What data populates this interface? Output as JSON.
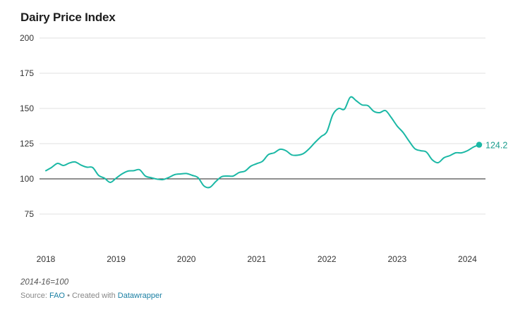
{
  "chart_data": {
    "type": "line",
    "title": "Dairy Price Index",
    "notes": "2014-16=100",
    "source": {
      "prefix": "Source:",
      "name": "FAO",
      "separator": "• Created with",
      "tool": "Datawrapper"
    },
    "ylim": [
      75,
      200
    ],
    "y_ticks": [
      75,
      100,
      125,
      150,
      175,
      200
    ],
    "baseline": 100,
    "xlim": [
      "2018-01",
      "2024-03"
    ],
    "x_ticks": [
      "2018",
      "2019",
      "2020",
      "2021",
      "2022",
      "2023",
      "2024"
    ],
    "grid": true,
    "colors": {
      "series": "#1bb8a5",
      "grid": "#e2e2e2",
      "baseline": "#222222"
    },
    "end_label": "124.2",
    "series": [
      {
        "x": [
          "2018-01",
          "2018-02",
          "2018-03",
          "2018-04",
          "2018-05",
          "2018-06",
          "2018-07",
          "2018-08",
          "2018-09",
          "2018-10",
          "2018-11",
          "2018-12",
          "2019-01",
          "2019-02",
          "2019-03",
          "2019-04",
          "2019-05",
          "2019-06",
          "2019-07",
          "2019-08",
          "2019-09",
          "2019-10",
          "2019-11",
          "2019-12",
          "2020-01",
          "2020-02",
          "2020-03",
          "2020-04",
          "2020-05",
          "2020-06",
          "2020-07",
          "2020-08",
          "2020-09",
          "2020-10",
          "2020-11",
          "2020-12",
          "2021-01",
          "2021-02",
          "2021-03",
          "2021-04",
          "2021-05",
          "2021-06",
          "2021-07",
          "2021-08",
          "2021-09",
          "2021-10",
          "2021-11",
          "2021-12",
          "2022-01",
          "2022-02",
          "2022-03",
          "2022-04",
          "2022-05",
          "2022-06",
          "2022-07",
          "2022-08",
          "2022-09",
          "2022-10",
          "2022-11",
          "2022-12",
          "2023-01",
          "2023-02",
          "2023-03",
          "2023-04",
          "2023-05",
          "2023-06",
          "2023-07",
          "2023-08",
          "2023-09",
          "2023-10",
          "2023-11",
          "2023-12",
          "2024-01",
          "2024-02",
          "2024-03"
        ],
        "values": [
          105.8,
          108.2,
          111.0,
          109.5,
          111.2,
          112.0,
          109.8,
          108.3,
          108.0,
          102.5,
          100.5,
          97.5,
          100.5,
          103.5,
          105.5,
          105.8,
          106.5,
          102.0,
          100.8,
          99.8,
          99.5,
          101.0,
          103.0,
          103.5,
          103.8,
          102.5,
          100.8,
          95.0,
          94.0,
          98.0,
          101.5,
          102.0,
          102.0,
          104.5,
          105.5,
          109.0,
          110.8,
          112.5,
          117.2,
          118.5,
          121.0,
          120.0,
          117.0,
          116.8,
          118.0,
          121.5,
          126.0,
          130.0,
          133.5,
          145.5,
          150.0,
          149.5,
          158.0,
          155.5,
          152.5,
          152.0,
          148.0,
          147.0,
          148.5,
          143.5,
          137.5,
          133.0,
          127.0,
          121.5,
          120.0,
          119.0,
          113.5,
          111.5,
          115.0,
          116.5,
          118.5,
          118.5,
          120.0,
          122.5,
          124.2
        ]
      }
    ]
  }
}
